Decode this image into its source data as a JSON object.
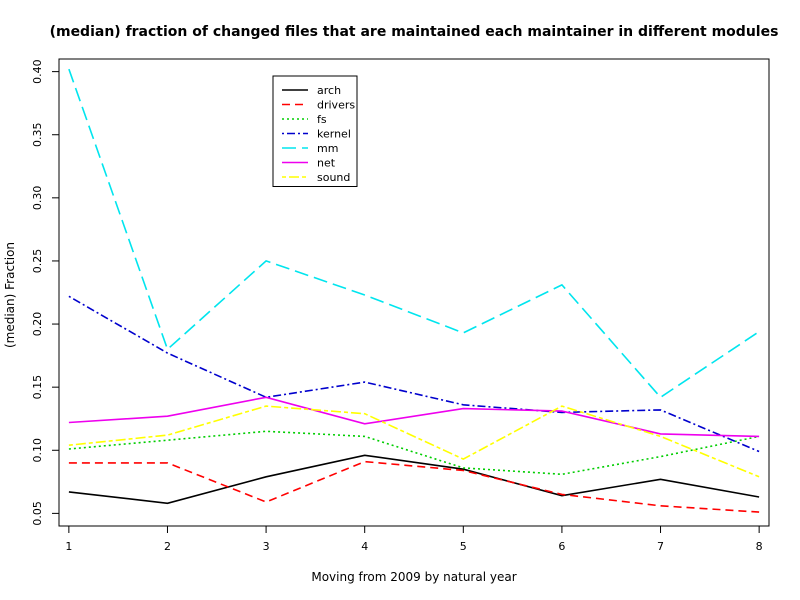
{
  "chart_data": {
    "type": "line",
    "title": "(median) fraction of changed files that are maintained each maintainer in different modules",
    "xlabel": "Moving from 2009 by natural year",
    "ylabel": "(median) Fraction",
    "x": [
      1,
      2,
      3,
      4,
      5,
      6,
      7,
      8
    ],
    "xlim": [
      0.9,
      8.1
    ],
    "ylim": [
      0.04,
      0.41
    ],
    "xticks": [
      "1",
      "2",
      "3",
      "4",
      "5",
      "6",
      "7",
      "8"
    ],
    "yticks": [
      "0.05",
      "0.10",
      "0.15",
      "0.20",
      "0.25",
      "0.30",
      "0.35",
      "0.40"
    ],
    "grid": false,
    "legend_position": "top-left",
    "series": [
      {
        "name": "arch",
        "color": "#000000",
        "dash": "solid",
        "values": [
          0.067,
          0.058,
          0.079,
          0.096,
          0.085,
          0.064,
          0.077,
          0.063
        ]
      },
      {
        "name": "drivers",
        "color": "#ff0000",
        "dash": "dashed",
        "values": [
          0.09,
          0.09,
          0.059,
          0.091,
          0.084,
          0.065,
          0.056,
          0.051
        ]
      },
      {
        "name": "fs",
        "color": "#00cd00",
        "dash": "dotted",
        "values": [
          0.101,
          0.108,
          0.115,
          0.111,
          0.086,
          0.081,
          0.095,
          0.111
        ]
      },
      {
        "name": "kernel",
        "color": "#0000cd",
        "dash": "dotdash",
        "values": [
          0.222,
          0.177,
          0.142,
          0.154,
          0.136,
          0.13,
          0.132,
          0.099
        ]
      },
      {
        "name": "mm",
        "color": "#00e5ee",
        "dash": "longdash",
        "values": [
          0.402,
          0.18,
          0.25,
          0.223,
          0.193,
          0.231,
          0.142,
          0.194
        ]
      },
      {
        "name": "net",
        "color": "#ee00ee",
        "dash": "solid",
        "values": [
          0.122,
          0.127,
          0.142,
          0.121,
          0.133,
          0.131,
          0.113,
          0.111
        ]
      },
      {
        "name": "sound",
        "color": "#ffff00",
        "dash": "twodash",
        "values": [
          0.104,
          0.112,
          0.135,
          0.129,
          0.093,
          0.135,
          0.111,
          0.079
        ]
      }
    ]
  }
}
